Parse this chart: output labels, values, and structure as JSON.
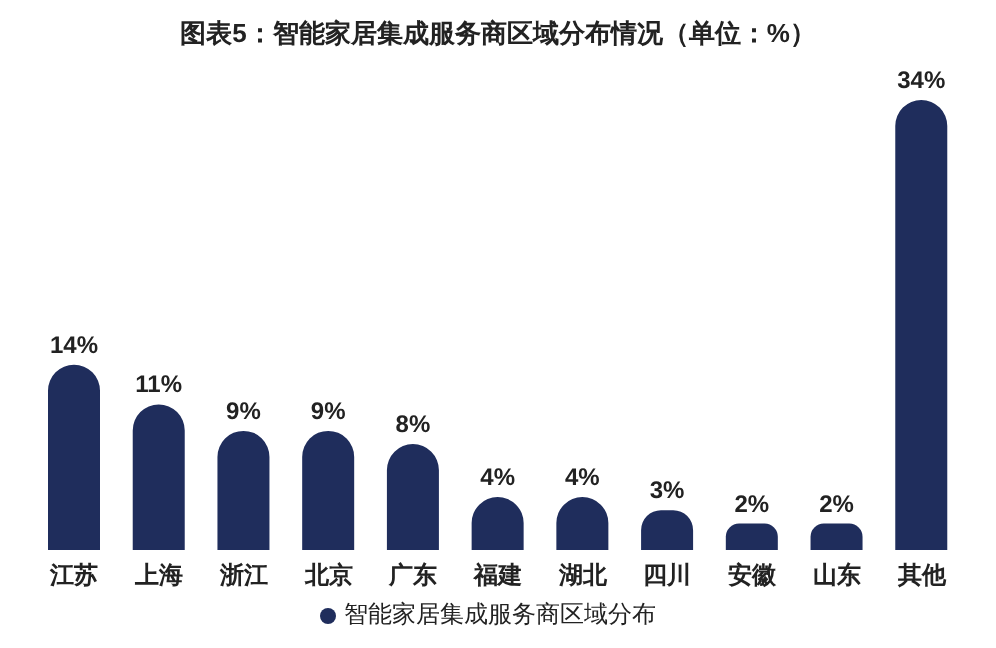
{
  "chart_data": {
    "type": "bar",
    "title": "图表5：智能家居集成服务商区域分布情况（单位：%）",
    "categories": [
      "江苏",
      "上海",
      "浙江",
      "北京",
      "广东",
      "福建",
      "湖北",
      "四川",
      "安徽",
      "山东",
      "其他"
    ],
    "series": [
      {
        "name": "智能家居集成服务商区域分布",
        "color": "#1f2d5c",
        "values": [
          14,
          11,
          9,
          9,
          8,
          4,
          4,
          3,
          2,
          2,
          34
        ],
        "value_labels": [
          "14%",
          "11%",
          "9%",
          "9%",
          "8%",
          "4%",
          "4%",
          "3%",
          "2%",
          "2%",
          "34%"
        ]
      }
    ],
    "legend": "bottom"
  }
}
